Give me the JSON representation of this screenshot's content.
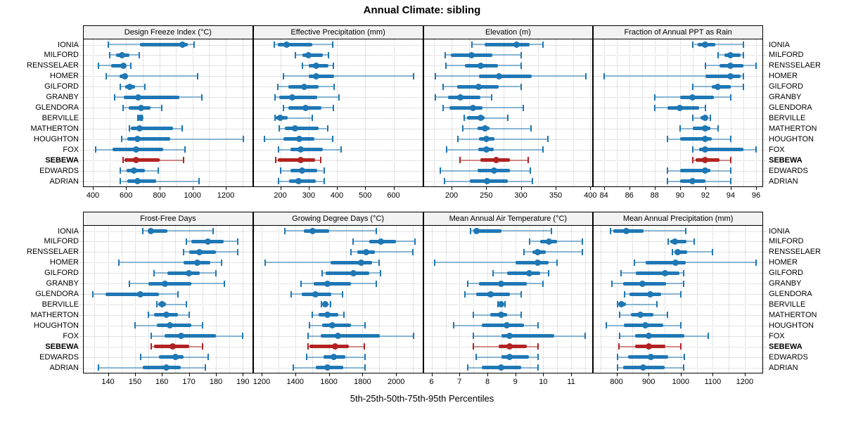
{
  "title": "Annual Climate: sibling",
  "footer": "5th-25th-50th-75th-95th Percentiles",
  "percentile_labels": [
    "5th",
    "25th",
    "50th",
    "75th",
    "95th"
  ],
  "sites": [
    "IONIA",
    "MILFORD",
    "RENSSELAER",
    "HOMER",
    "GILFORD",
    "GRANBY",
    "GLENDORA",
    "BERVILLE",
    "MATHERTON",
    "HOUGHTON",
    "FOX",
    "SEBEWA",
    "EDWARDS",
    "ADRIAN"
  ],
  "highlight_site": "SEBEWA",
  "colors": {
    "normal": "#1f77b4",
    "normal_faint": "rgba(31,119,180,0.5)",
    "highlight": "#b22222",
    "highlight_faint": "rgba(178,34,34,0.5)",
    "grid": "#c9c9c9",
    "strip_bg": "#f2f2f2",
    "border": "#000000"
  },
  "chart_data": [
    {
      "type": "dotplot-range",
      "title": "Design Freeze Index (°C)",
      "row": 0,
      "col": 0,
      "xlim": [
        345,
        1360
      ],
      "ticks": [
        400,
        600,
        800,
        1000,
        1200
      ],
      "grid_step": 100,
      "values": [
        [
          495,
          685,
          940,
          970,
          1010
        ],
        [
          500,
          540,
          577,
          622,
          680
        ],
        [
          435,
          511,
          583,
          597,
          628
        ],
        [
          480,
          559,
          591,
          601,
          1030
        ],
        [
          566,
          594,
          624,
          656,
          711
        ],
        [
          532,
          587,
          673,
          919,
          1058
        ],
        [
          580,
          615,
          691,
          746,
          815
        ],
        [
          670,
          674,
          684,
          691,
          695
        ],
        [
          619,
          628,
          681,
          884,
          937
        ],
        [
          573,
          608,
          670,
          864,
          1307
        ],
        [
          417,
          518,
          659,
          822,
          954
        ],
        [
          583,
          591,
          659,
          801,
          947
        ],
        [
          564,
          601,
          649,
          711,
          794
        ],
        [
          564,
          608,
          670,
          780,
          1037
        ]
      ]
    },
    {
      "type": "dotplot-range",
      "title": "Effective Precipitation (mm)",
      "row": 0,
      "col": 1,
      "xlim": [
        106,
        702
      ],
      "ticks": [
        200,
        300,
        400,
        500,
        600
      ],
      "grid_step": 100,
      "values": [
        [
          178,
          190,
          222,
          312,
          386
        ],
        [
          252,
          278,
          298,
          350,
          370
        ],
        [
          277,
          300,
          326,
          370,
          388
        ],
        [
          212,
          300,
          327,
          390,
          670
        ],
        [
          192,
          228,
          283,
          335,
          390
        ],
        [
          180,
          196,
          241,
          330,
          408
        ],
        [
          210,
          228,
          288,
          345,
          388
        ],
        [
          180,
          184,
          200,
          225,
          312
        ],
        [
          196,
          216,
          252,
          335,
          367
        ],
        [
          145,
          212,
          268,
          320,
          385
        ],
        [
          194,
          235,
          272,
          350,
          415
        ],
        [
          183,
          190,
          273,
          324,
          342
        ],
        [
          200,
          235,
          278,
          330,
          355
        ],
        [
          193,
          230,
          265,
          325,
          355
        ]
      ]
    },
    {
      "type": "dotplot-range",
      "title": "Elevation (m)",
      "row": 0,
      "col": 2,
      "xlim": [
        160,
        403
      ],
      "ticks": [
        200,
        250,
        300,
        350,
        400
      ],
      "grid_step": 25,
      "values": [
        [
          229,
          248,
          294,
          313,
          332
        ],
        [
          191,
          199,
          229,
          259,
          300
        ],
        [
          192,
          219,
          242,
          267,
          300
        ],
        [
          177,
          240,
          268,
          316,
          394
        ],
        [
          188,
          208,
          239,
          268,
          300
        ],
        [
          177,
          195,
          213,
          242,
          258
        ],
        [
          188,
          197,
          231,
          245,
          303
        ],
        [
          218,
          222,
          242,
          248,
          281
        ],
        [
          216,
          237,
          248,
          255,
          315
        ],
        [
          209,
          240,
          250,
          262,
          339
        ],
        [
          193,
          239,
          250,
          261,
          332
        ],
        [
          212,
          242,
          264,
          284,
          310
        ],
        [
          184,
          237,
          261,
          284,
          314
        ],
        [
          190,
          226,
          251,
          281,
          317
        ]
      ]
    },
    {
      "type": "dotplot-range",
      "title": "Fraction of Annual PPT as Rain",
      "row": 0,
      "col": 3,
      "xlim": [
        83.2,
        96.5
      ],
      "ticks": [
        84,
        86,
        88,
        90,
        92,
        94,
        96
      ],
      "grid_step": 1,
      "values": [
        [
          91,
          91.4,
          92,
          92.8,
          95
        ],
        [
          93,
          93.5,
          94,
          94.8,
          95
        ],
        [
          92,
          93.1,
          94,
          95,
          96
        ],
        [
          84,
          92,
          94,
          94.8,
          95
        ],
        [
          91,
          92.5,
          93,
          94,
          95
        ],
        [
          88,
          90,
          91,
          92.7,
          94
        ],
        [
          88,
          89,
          90,
          91.5,
          92
        ],
        [
          91,
          91.6,
          92,
          92.1,
          92.4
        ],
        [
          90,
          91,
          92,
          92.4,
          93
        ],
        [
          89,
          90,
          92,
          92.5,
          94
        ],
        [
          91,
          91.5,
          92,
          95,
          96
        ],
        [
          91,
          91.2,
          92,
          93.1,
          94
        ],
        [
          89,
          90,
          92,
          92.4,
          94
        ],
        [
          89,
          90,
          91,
          92,
          94
        ]
      ]
    },
    {
      "type": "dotplot-range",
      "title": "Frost-Free Days",
      "row": 1,
      "col": 0,
      "xlim": [
        131,
        193.5
      ],
      "ticks": [
        140,
        150,
        160,
        170,
        180,
        190
      ],
      "grid_step": 5,
      "values": [
        [
          153,
          154.7,
          156,
          162,
          179
        ],
        [
          169,
          171,
          177,
          183,
          188
        ],
        [
          168,
          170,
          174,
          180,
          188
        ],
        [
          144,
          168,
          173,
          178,
          182
        ],
        [
          157,
          162,
          170,
          174,
          180
        ],
        [
          148,
          155,
          161,
          171,
          183
        ],
        [
          134.5,
          139,
          152,
          159,
          166
        ],
        [
          158,
          158.6,
          160,
          161.5,
          169
        ],
        [
          155,
          157,
          161.5,
          166,
          170
        ],
        [
          150,
          158,
          163,
          171,
          175
        ],
        [
          156,
          161,
          167,
          180,
          190
        ],
        [
          156,
          157,
          164,
          170,
          175
        ],
        [
          152,
          159,
          165,
          168,
          177
        ],
        [
          136.5,
          153,
          161.5,
          167,
          176
        ]
      ]
    },
    {
      "type": "dotplot-range",
      "title": "Growing Degree Days (°C)",
      "row": 1,
      "col": 1,
      "xlim": [
        1153,
        2156
      ],
      "ticks": [
        1200,
        1400,
        1600,
        1800,
        2000
      ],
      "grid_step": 100,
      "values": [
        [
          1340,
          1450,
          1505,
          1600,
          1880
        ],
        [
          1745,
          1840,
          1910,
          2000,
          2110
        ],
        [
          1730,
          1770,
          1820,
          1875,
          2100
        ],
        [
          1220,
          1610,
          1790,
          1855,
          1900
        ],
        [
          1560,
          1580,
          1745,
          1840,
          1905
        ],
        [
          1435,
          1510,
          1590,
          1730,
          1880
        ],
        [
          1375,
          1440,
          1520,
          1615,
          1680
        ],
        [
          1555,
          1565,
          1578,
          1595,
          1610
        ],
        [
          1500,
          1540,
          1593,
          1657,
          1690
        ],
        [
          1485,
          1560,
          1620,
          1730,
          1815
        ],
        [
          1475,
          1550,
          1653,
          1905,
          2105
        ],
        [
          1475,
          1485,
          1635,
          1720,
          1810
        ],
        [
          1468,
          1570,
          1630,
          1700,
          1815
        ],
        [
          1390,
          1520,
          1593,
          1685,
          1815
        ]
      ]
    },
    {
      "type": "dotplot-range",
      "title": "Mean Annual Air Temperature (°C)",
      "row": 1,
      "col": 2,
      "xlim": [
        5.72,
        11.76
      ],
      "ticks": [
        6,
        7,
        8,
        9,
        10,
        11
      ],
      "grid_step": 0.5,
      "values": [
        [
          7.4,
          7.5,
          7.6,
          8.5,
          10.3
        ],
        [
          9.5,
          9.9,
          10.2,
          10.5,
          11.4
        ],
        [
          9.3,
          9.6,
          9.8,
          10.1,
          11.4
        ],
        [
          6.1,
          9.0,
          9.8,
          10.2,
          10.5
        ],
        [
          8.2,
          8.7,
          9.5,
          9.9,
          10.2
        ],
        [
          7.3,
          7.7,
          8.5,
          9.4,
          10.0
        ],
        [
          7.2,
          7.6,
          8.1,
          8.8,
          9.2
        ],
        [
          8.38,
          8.42,
          8.5,
          8.55,
          8.62
        ],
        [
          7.5,
          8.1,
          8.5,
          8.7,
          9.2
        ],
        [
          6.8,
          7.8,
          8.7,
          9.3,
          9.8
        ],
        [
          7.5,
          8.5,
          8.8,
          10.4,
          11.5
        ],
        [
          7.5,
          8.4,
          8.8,
          9.4,
          9.8
        ],
        [
          7.6,
          8.5,
          8.8,
          9.5,
          9.8
        ],
        [
          7.3,
          7.8,
          8.5,
          9.2,
          9.8
        ]
      ]
    },
    {
      "type": "dotplot-range",
      "title": "Mean Annual Precipitation (mm)",
      "row": 1,
      "col": 3,
      "xlim": [
        729,
        1255
      ],
      "ticks": [
        800,
        900,
        1000,
        1100,
        1200
      ],
      "grid_step": 50,
      "values": [
        [
          780,
          790,
          830,
          885,
          1015
        ],
        [
          960,
          968,
          981,
          1019,
          1043
        ],
        [
          973,
          980,
          990,
          1020,
          1100
        ],
        [
          855,
          890,
          985,
          1015,
          1235
        ],
        [
          815,
          860,
          950,
          995,
          1010
        ],
        [
          785,
          820,
          880,
          955,
          1010
        ],
        [
          825,
          840,
          905,
          940,
          1000
        ],
        [
          804,
          807,
          816,
          830,
          925
        ],
        [
          810,
          845,
          875,
          915,
          958
        ],
        [
          768,
          822,
          890,
          945,
          1000
        ],
        [
          810,
          858,
          900,
          1012,
          1085
        ],
        [
          807,
          857,
          900,
          952,
          1000
        ],
        [
          804,
          835,
          908,
          960,
          1012
        ],
        [
          802,
          820,
          883,
          950,
          1010
        ]
      ]
    }
  ]
}
